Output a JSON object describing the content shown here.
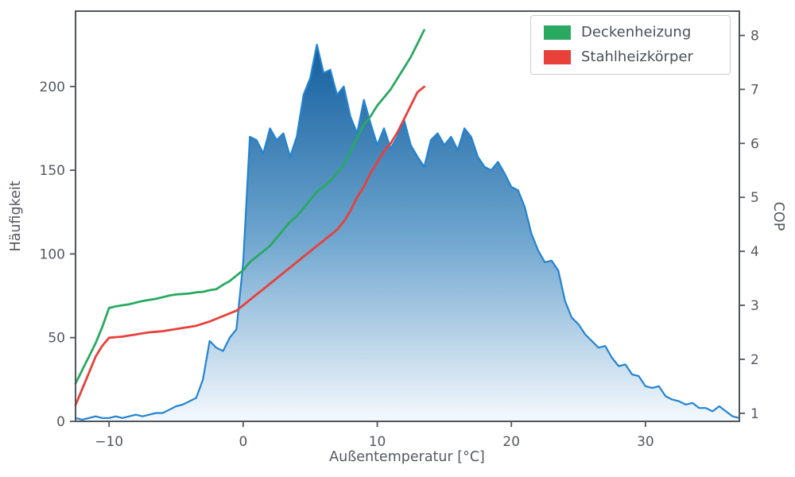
{
  "chart_data": {
    "type": "area+line",
    "title": "",
    "xlabel": "Außentemperatur [°C]",
    "ylabel_left": "Häufigkeit",
    "ylabel_right": "COP",
    "xlim": [
      -12.5,
      37
    ],
    "ylim_left": [
      0,
      245
    ],
    "ylim_right": [
      0.85,
      8.45
    ],
    "xticks": [
      -10,
      0,
      10,
      20,
      30
    ],
    "yticks_left": [
      0,
      50,
      100,
      150,
      200
    ],
    "yticks_right": [
      1,
      2,
      3,
      4,
      5,
      6,
      7,
      8
    ],
    "grid": false,
    "legend_position": "upper right",
    "frame_color": "#50555b",
    "text_color": "#54585e",
    "histogram": {
      "name": "Häufigkeit",
      "axis": "left",
      "color": "#2383d0",
      "fill_gradient_top": "#125e9e",
      "fill_gradient_bottom": "#f2f8fc",
      "x_start": -12.5,
      "x_step": 0.5,
      "values": [
        2,
        1,
        2,
        3,
        2,
        2,
        3,
        2,
        3,
        4,
        3,
        4,
        5,
        5,
        7,
        9,
        10,
        12,
        14,
        25,
        48,
        44,
        42,
        50,
        55,
        95,
        170,
        168,
        160,
        175,
        168,
        172,
        158,
        170,
        195,
        205,
        225,
        208,
        210,
        195,
        200,
        182,
        172,
        192,
        178,
        165,
        175,
        163,
        170,
        180,
        165,
        158,
        152,
        168,
        172,
        165,
        170,
        162,
        175,
        170,
        158,
        152,
        150,
        155,
        148,
        140,
        138,
        128,
        112,
        102,
        95,
        96,
        90,
        72,
        62,
        58,
        52,
        48,
        44,
        45,
        38,
        33,
        34,
        28,
        27,
        21,
        20,
        21,
        15,
        13,
        12,
        10,
        11,
        8,
        8,
        6,
        9,
        6,
        3,
        2
      ]
    },
    "series": [
      {
        "name": "Deckenheizung",
        "key": "deckenheizung",
        "axis": "right",
        "color": "#29a961",
        "x_start": -12.5,
        "x_step": 0.5,
        "values": [
          1.55,
          1.8,
          2.05,
          2.3,
          2.6,
          2.95,
          2.98,
          3.0,
          3.02,
          3.05,
          3.08,
          3.1,
          3.12,
          3.15,
          3.18,
          3.2,
          3.21,
          3.22,
          3.24,
          3.25,
          3.28,
          3.3,
          3.38,
          3.45,
          3.55,
          3.65,
          3.8,
          3.9,
          4.0,
          4.1,
          4.25,
          4.4,
          4.55,
          4.65,
          4.8,
          4.95,
          5.1,
          5.2,
          5.3,
          5.45,
          5.6,
          5.85,
          6.1,
          6.35,
          6.5,
          6.7,
          6.85,
          7.0,
          7.2,
          7.4,
          7.6,
          7.85,
          8.1
        ]
      },
      {
        "name": "Stahlheizkörper",
        "key": "stahlheizkoerper",
        "axis": "right",
        "color": "#e8403a",
        "x_start": -12.5,
        "x_step": 0.5,
        "values": [
          1.15,
          1.45,
          1.75,
          2.05,
          2.25,
          2.4,
          2.41,
          2.42,
          2.44,
          2.46,
          2.48,
          2.5,
          2.51,
          2.52,
          2.54,
          2.56,
          2.58,
          2.6,
          2.62,
          2.66,
          2.7,
          2.75,
          2.8,
          2.85,
          2.9,
          3.0,
          3.1,
          3.2,
          3.3,
          3.4,
          3.5,
          3.6,
          3.7,
          3.8,
          3.9,
          4.0,
          4.1,
          4.2,
          4.3,
          4.4,
          4.55,
          4.75,
          5.0,
          5.2,
          5.45,
          5.65,
          5.85,
          6.0,
          6.2,
          6.45,
          6.7,
          6.95,
          7.05
        ]
      }
    ]
  }
}
